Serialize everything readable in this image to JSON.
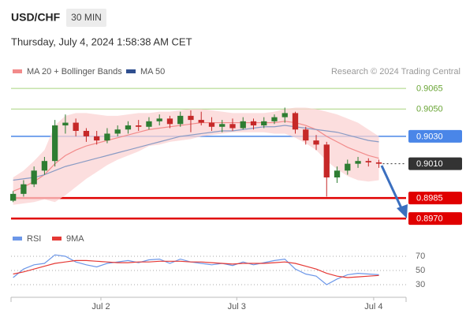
{
  "chart_data": [
    {
      "type": "candlestick",
      "title": "USD/CHF",
      "timeframe": "30 MIN",
      "subtitle": "Thursday, July 4, 2024 1:58:38 AM CET",
      "source": "Research © 2024 Trading Central",
      "up_color": "#2e7d32",
      "down_color": "#c62828",
      "xlim": [
        -0.2,
        37.6
      ],
      "ylim": [
        0.8962,
        0.9072
      ],
      "open": [
        0.8983,
        0.8988,
        0.8995,
        0.9005,
        0.9012,
        0.9038,
        0.904,
        0.9034,
        0.903,
        0.9027,
        0.9032,
        0.9035,
        0.9038,
        0.9037,
        0.9041,
        0.9043,
        0.9039,
        0.9045,
        0.9042,
        0.904,
        0.9037,
        0.9039,
        0.9036,
        0.9041,
        0.9038,
        0.9041,
        0.9044,
        0.9047,
        0.9035,
        0.9027,
        0.9024,
        0.9,
        0.9005,
        0.901,
        0.9012,
        0.9011
      ],
      "high": [
        0.899,
        0.8998,
        0.9008,
        0.9015,
        0.9042,
        0.9046,
        0.9043,
        0.9036,
        0.9034,
        0.9036,
        0.9038,
        0.9041,
        0.9042,
        0.9044,
        0.9046,
        0.9045,
        0.9048,
        0.9049,
        0.9048,
        0.9044,
        0.9042,
        0.9043,
        0.9044,
        0.9043,
        0.9044,
        0.9046,
        0.9051,
        0.9048,
        0.9037,
        0.9031,
        0.9026,
        0.9008,
        0.9013,
        0.9015,
        0.9014,
        0.9013
      ],
      "low": [
        0.8982,
        0.8986,
        0.8993,
        0.9002,
        0.9008,
        0.9032,
        0.903,
        0.9026,
        0.9024,
        0.9025,
        0.903,
        0.9032,
        0.9034,
        0.9035,
        0.9038,
        0.9036,
        0.9037,
        0.9033,
        0.9038,
        0.9034,
        0.9033,
        0.9034,
        0.9035,
        0.9035,
        0.9036,
        0.9039,
        0.904,
        0.9032,
        0.9024,
        0.902,
        0.8986,
        0.8996,
        0.9002,
        0.9007,
        0.9008,
        0.9007
      ],
      "close": [
        0.8988,
        0.8995,
        0.9005,
        0.9012,
        0.9038,
        0.904,
        0.9034,
        0.903,
        0.9027,
        0.9032,
        0.9035,
        0.9038,
        0.9037,
        0.9041,
        0.9043,
        0.9039,
        0.9045,
        0.9042,
        0.904,
        0.9037,
        0.9039,
        0.9036,
        0.9041,
        0.9038,
        0.9041,
        0.9044,
        0.9047,
        0.9035,
        0.9027,
        0.9024,
        0.9,
        0.9005,
        0.901,
        0.9012,
        0.9011,
        0.901
      ],
      "series": [
        {
          "name": "MA 20 + Bollinger Bands",
          "color": "#f28b8b",
          "band_color": "#fbd3d3",
          "values": [
            0.899,
            0.8993,
            0.8997,
            0.9002,
            0.901,
            0.9016,
            0.902,
            0.9023,
            0.9025,
            0.9027,
            0.9029,
            0.9031,
            0.9033,
            0.9035,
            0.9036,
            0.9037,
            0.9038,
            0.9039,
            0.904,
            0.904,
            0.904,
            0.904,
            0.904,
            0.904,
            0.904,
            0.904,
            0.9041,
            0.904,
            0.9038,
            0.9035,
            0.903,
            0.9026,
            0.9022,
            0.9019,
            0.9016,
            0.9014
          ],
          "upper": [
            0.9,
            0.9005,
            0.9012,
            0.902,
            0.9038,
            0.9045,
            0.9047,
            0.9047,
            0.9046,
            0.9045,
            0.9045,
            0.9046,
            0.9047,
            0.9047,
            0.9048,
            0.9048,
            0.9049,
            0.905,
            0.905,
            0.9049,
            0.9048,
            0.9047,
            0.9047,
            0.9047,
            0.9047,
            0.9048,
            0.905,
            0.9051,
            0.9051,
            0.905,
            0.9048,
            0.9046,
            0.9043,
            0.904,
            0.9035,
            0.903
          ],
          "lower": [
            0.898,
            0.8981,
            0.8982,
            0.8984,
            0.8982,
            0.8987,
            0.8993,
            0.8999,
            0.9004,
            0.9009,
            0.9013,
            0.9016,
            0.9019,
            0.9023,
            0.9024,
            0.9026,
            0.9027,
            0.9028,
            0.903,
            0.9031,
            0.9032,
            0.9033,
            0.9033,
            0.9033,
            0.9033,
            0.9032,
            0.9032,
            0.9029,
            0.9025,
            0.902,
            0.9012,
            0.9006,
            0.9001,
            0.8998,
            0.8997,
            0.8998
          ]
        },
        {
          "name": "MA 50",
          "color": "#2f4f8f",
          "line_color": "#8a9bc4",
          "values": [
            0.8998,
            0.8999,
            0.9,
            0.9002,
            0.9005,
            0.9008,
            0.901,
            0.9012,
            0.9014,
            0.9016,
            0.9018,
            0.902,
            0.9022,
            0.9024,
            0.9026,
            0.9028,
            0.903,
            0.9031,
            0.9032,
            0.9033,
            0.9034,
            0.9034,
            0.9035,
            0.9036,
            0.9037,
            0.9037,
            0.9038,
            0.9037,
            0.9036,
            0.9035,
            0.9034,
            0.9033,
            0.9031,
            0.9029,
            0.9027,
            0.9026
          ]
        }
      ],
      "levels": [
        {
          "value": 0.9065,
          "color": "#a8d47e",
          "text_color": "#6aa536",
          "line_width": 1,
          "label_box": false,
          "dashed": false
        },
        {
          "value": 0.905,
          "label": "0.9050",
          "color": "#a8d47e",
          "text_color": "#6aa536",
          "line_width": 1,
          "label_box": false,
          "dashed": false
        },
        {
          "value": 0.903,
          "label": "0.9030",
          "color": "#4a86e8",
          "text_color": "#ffffff",
          "line_width": 1.5,
          "label_box": true,
          "dashed": false
        },
        {
          "value": 0.901,
          "label": "0.9010",
          "color": "#333333",
          "text_color": "#ffffff",
          "line_width": 1,
          "label_box": true,
          "dashed": true
        },
        {
          "value": 0.8985,
          "color": "#e00000",
          "text_color": "#ffffff",
          "line_width": 2.5,
          "label_box": true,
          "dashed": false
        },
        {
          "value": 0.897,
          "label": "0.8970",
          "color": "#e00000",
          "text_color": "#ffffff",
          "line_width": 2.5,
          "label_box": true,
          "dashed": false
        }
      ]
    },
    {
      "type": "line",
      "xlim": [
        -0.2,
        37.6
      ],
      "xticks": [
        {
          "value": 8.4,
          "label": "Jul 2"
        },
        {
          "value": 21.4,
          "label": "Jul 3"
        },
        {
          "value": 34.5,
          "label": "Jul 4"
        }
      ],
      "ylim": [
        20,
        80
      ],
      "yticks": [
        70,
        50,
        30
      ],
      "grid": true,
      "series": [
        {
          "name": "RSI",
          "color": "#6c97e8",
          "values": [
            40,
            52,
            58,
            60,
            72,
            70,
            62,
            58,
            55,
            60,
            62,
            64,
            61,
            65,
            66,
            60,
            66,
            62,
            60,
            58,
            60,
            57,
            62,
            58,
            61,
            64,
            66,
            52,
            45,
            42,
            30,
            38,
            44,
            46,
            45,
            44
          ]
        },
        {
          "name": "9MA",
          "color": "#e53935",
          "values": [
            45,
            48,
            52,
            56,
            60,
            62,
            64,
            64,
            63,
            62,
            61,
            61,
            62,
            62,
            63,
            63,
            63,
            62,
            62,
            61,
            60,
            59,
            60,
            60,
            60,
            61,
            62,
            60,
            56,
            52,
            46,
            42,
            40,
            41,
            42,
            43
          ]
        }
      ]
    }
  ]
}
